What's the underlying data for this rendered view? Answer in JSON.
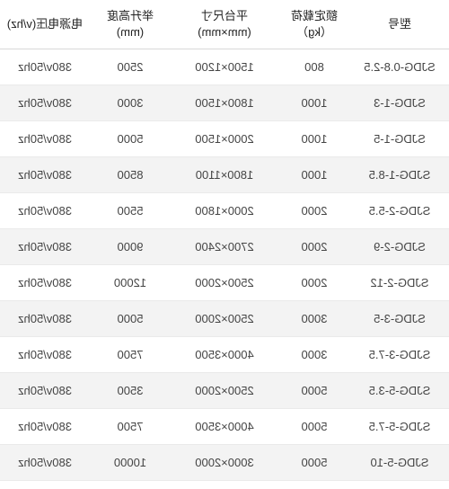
{
  "table": {
    "columns": [
      {
        "key": "model",
        "header": "型号",
        "class": "col-model"
      },
      {
        "key": "load",
        "header": "额定载荷\n（kg）",
        "class": "col-load"
      },
      {
        "key": "size",
        "header": "平台尺寸\n(mm×mm)",
        "class": "col-size"
      },
      {
        "key": "height",
        "header": "举升高度\n(mm)",
        "class": "col-height"
      },
      {
        "key": "power",
        "header": "电源电压(v/hz)",
        "class": "col-power"
      }
    ],
    "rows": [
      {
        "model": "SJDG-0.8-2.5",
        "load": "800",
        "size": "1500×1200",
        "height": "2500",
        "power": "380v/50hz"
      },
      {
        "model": "SJDG-1-3",
        "load": "1000",
        "size": "1800×1500",
        "height": "3000",
        "power": "380v/50hz"
      },
      {
        "model": "SJDG-1-5",
        "load": "1000",
        "size": "2000×1500",
        "height": "5000",
        "power": "380v/50hz"
      },
      {
        "model": "SJDG-1-8.5",
        "load": "1000",
        "size": "1800×1100",
        "height": "8500",
        "power": "380v/50hz"
      },
      {
        "model": "SJDG-2-5.5",
        "load": "2000",
        "size": "2000×1800",
        "height": "5500",
        "power": "380v/50hz"
      },
      {
        "model": "SJDG-2-9",
        "load": "2000",
        "size": "2700×2400",
        "height": "9000",
        "power": "380v/50hz"
      },
      {
        "model": "SJDG-2-12",
        "load": "2000",
        "size": "2500×2000",
        "height": "12000",
        "power": "380v/50hz"
      },
      {
        "model": "SJDG-3-5",
        "load": "3000",
        "size": "2500×2000",
        "height": "5000",
        "power": "380v/50hz"
      },
      {
        "model": "SJDG-3-7.5",
        "load": "3000",
        "size": "4000×3500",
        "height": "7500",
        "power": "380v/50hz"
      },
      {
        "model": "SJDG-5-3.5",
        "load": "5000",
        "size": "2500×2000",
        "height": "3500",
        "power": "380v/50hz"
      },
      {
        "model": "SJDG-5-7.5",
        "load": "5000",
        "size": "4000×3500",
        "height": "7500",
        "power": "380v/50hz"
      },
      {
        "model": "SJDG-5-10",
        "load": "5000",
        "size": "3000×2000",
        "height": "10000",
        "power": "380v/50hz"
      }
    ],
    "header_bg": "#ffffff",
    "row_even_bg": "#f3f3f3",
    "row_odd_bg": "#ffffff",
    "text_color": "#444444",
    "header_text_color": "#222222",
    "border_color": "#eaeaea",
    "font_size": 13
  }
}
